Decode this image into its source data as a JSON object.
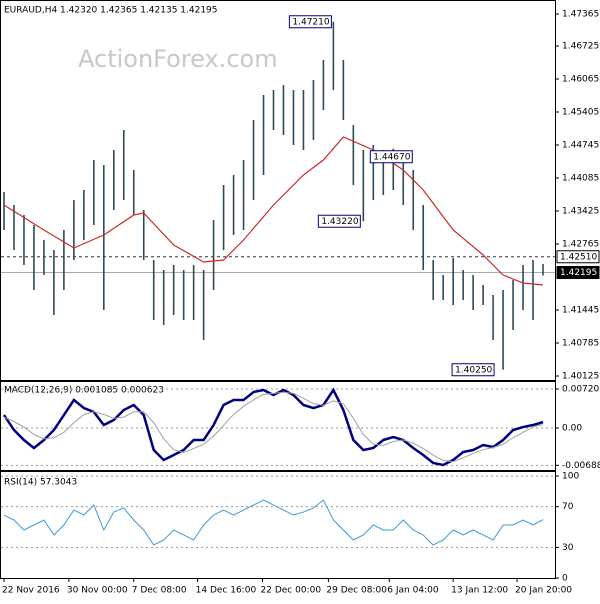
{
  "chart_data": [
    {
      "type": "ohlc",
      "title": "EURAUD,H4  1.42320 1.42365 1.42135 1.42195",
      "watermark": "ActionForex.com",
      "color": "#2e4a58",
      "highs": [
        1.43805,
        1.43545,
        1.43345,
        1.43145,
        1.42845,
        1.42645,
        1.43045,
        1.43645,
        1.43845,
        1.44445,
        1.44345,
        1.44645,
        1.45045,
        1.44245,
        1.43445,
        1.42445,
        1.42245,
        1.42345,
        1.42245,
        1.42345,
        1.42245,
        1.43245,
        1.43945,
        1.44145,
        1.44445,
        1.45245,
        1.45745,
        1.45845,
        1.45945,
        1.45845,
        1.45845,
        1.46045,
        1.46445,
        1.4721,
        1.46445,
        1.45145,
        1.44645,
        1.44745,
        1.44645,
        1.4467,
        1.44445,
        1.44245,
        1.43545,
        1.42445,
        1.42145,
        1.42485,
        1.42245,
        1.42145,
        1.41945,
        1.41745,
        1.41845,
        1.42045,
        1.42345,
        1.42445,
        1.42365
      ],
      "lows": [
        1.43045,
        1.42645,
        1.42345,
        1.41845,
        1.42145,
        1.41345,
        1.41845,
        1.42445,
        1.42845,
        1.43145,
        1.41445,
        1.43445,
        1.43645,
        1.43345,
        1.42445,
        1.41245,
        1.41145,
        1.41345,
        1.41245,
        1.41245,
        1.40845,
        1.41845,
        1.42645,
        1.42945,
        1.43045,
        1.43645,
        1.44145,
        1.45045,
        1.44945,
        1.44745,
        1.44645,
        1.44845,
        1.45445,
        1.45845,
        1.45245,
        1.43945,
        1.4322,
        1.43645,
        1.43745,
        1.43845,
        1.43545,
        1.43045,
        1.42245,
        1.41645,
        1.41645,
        1.41545,
        1.41645,
        1.41445,
        1.41545,
        1.40845,
        1.4025,
        1.41045,
        1.41445,
        1.41245,
        1.42135
      ],
      "ma": {
        "color": "#cc2a2a",
        "x": [
          0,
          4,
          7,
          10,
          13,
          14,
          17,
          20,
          22,
          24,
          27,
          30,
          32,
          34,
          37,
          40,
          42,
          45,
          48,
          50,
          52,
          54
        ],
        "values": [
          1.43545,
          1.43045,
          1.42685,
          1.42945,
          1.43345,
          1.43385,
          1.42745,
          1.42405,
          1.42445,
          1.42845,
          1.43545,
          1.44145,
          1.44445,
          1.44905,
          1.44645,
          1.44245,
          1.43845,
          1.43045,
          1.42545,
          1.42145,
          1.41985,
          1.41945
        ]
      },
      "annotations": [
        {
          "bar": 33,
          "at": "highs",
          "label": "1.47210"
        },
        {
          "bar": 39,
          "at": "highs",
          "label": "1.44670"
        },
        {
          "bar": 36,
          "at": "lows",
          "label": "1.43220"
        },
        {
          "bar": 50,
          "at": "lows",
          "label": "1.40250"
        }
      ],
      "levels": [
        {
          "value": 1.4251,
          "label": "1.42510",
          "style": "dashed"
        },
        {
          "value": 1.42195,
          "label": "1.42195",
          "style": "solid"
        }
      ],
      "ylim": [
        1.40045,
        1.47645
      ],
      "yticks": [
        1.47365,
        1.46725,
        1.46065,
        1.45405,
        1.44745,
        1.44085,
        1.43425,
        1.42765,
        1.41445,
        1.40785,
        1.40125
      ],
      "xticks": [
        {
          "value": 0,
          "label": "22 Nov 2016"
        },
        {
          "value": 6.5,
          "label": "30 Nov 00:00"
        },
        {
          "value": 13,
          "label": "7 Dec 08:00"
        },
        {
          "value": 19.4,
          "label": "14 Dec 16:00"
        },
        {
          "value": 25.9,
          "label": "22 Dec 00:00"
        },
        {
          "value": 32.5,
          "label": "29 Dec 08:00"
        },
        {
          "value": 38.6,
          "label": "6 Jan 04:00"
        },
        {
          "value": 45,
          "label": "13 Jan 12:00"
        },
        {
          "value": 51.4,
          "label": "20 Jan 20:00"
        }
      ]
    },
    {
      "type": "line",
      "title": "MACD(12,26,9) 0.001085 0.000623",
      "ylim": [
        -0.007753,
        0.008678
      ],
      "yticks": [
        0.007201,
        {
          "value": 0,
          "label": "0.00"
        },
        -0.006888
      ],
      "series": [
        {
          "color": "#000080",
          "width": 2.5,
          "values": [
            0.0024,
            -0.00037,
            -0.00222,
            -0.00369,
            -0.00222,
            -0.00037,
            0.0024,
            0.00517,
            0.00369,
            0.00295,
            0.00055,
            0.00148,
            0.00332,
            0.00425,
            0.0024,
            -0.00406,
            -0.00591,
            -0.00498,
            -0.00406,
            -0.00222,
            -0.00222,
            0.00055,
            0.00425,
            0.00517,
            0.00517,
            0.00665,
            0.00701,
            0.00609,
            0.00701,
            0.00609,
            0.00425,
            0.00369,
            0.00425,
            0.00701,
            0.00332,
            -0.00222,
            -0.00406,
            -0.00369,
            -0.00222,
            -0.00166,
            -0.00222,
            -0.00369,
            -0.00498,
            -0.00646,
            -0.00683,
            -0.00591,
            -0.00443,
            -0.00406,
            -0.00314,
            -0.00351,
            -0.00222,
            -0.00037,
            0.00018,
            0.00055,
            0.001085
          ]
        },
        {
          "color": "#a0a0a0",
          "width": 1,
          "values": [
            0.002,
            0.0012,
            0.0002,
            -0.0012,
            -0.002,
            -0.0018,
            -0.0008,
            0.001,
            0.0025,
            0.003,
            0.0025,
            0.0018,
            0.002,
            0.003,
            0.003,
            0.001,
            -0.002,
            -0.004,
            -0.0045,
            -0.0038,
            -0.003,
            -0.0015,
            0.0005,
            0.0025,
            0.004,
            0.0052,
            0.0062,
            0.0064,
            0.0066,
            0.0064,
            0.0055,
            0.0045,
            0.0042,
            0.005,
            0.0045,
            0.0018,
            -0.0012,
            -0.003,
            -0.0032,
            -0.0025,
            -0.0022,
            -0.0028,
            -0.0038,
            -0.005,
            -0.006,
            -0.0062,
            -0.0055,
            -0.0047,
            -0.004,
            -0.0036,
            -0.003,
            -0.0018,
            -0.0008,
            0.0002,
            0.000623
          ]
        }
      ]
    },
    {
      "type": "line",
      "title": "RSI(14) 57.3043",
      "ylim": [
        0,
        104
      ],
      "yticks": [
        100,
        70,
        30,
        0
      ],
      "series": [
        {
          "color": "#3d9ad8",
          "width": 1,
          "values": [
            61.8,
            56.9,
            47.1,
            52,
            56.9,
            42.2,
            52,
            66.7,
            61.8,
            71.6,
            47.1,
            64.7,
            68.6,
            56.9,
            47.1,
            32.4,
            37.3,
            47.1,
            42.2,
            37.3,
            52,
            61.8,
            66.7,
            61.8,
            66.7,
            71.6,
            76.5,
            71.6,
            66.7,
            61.8,
            64.7,
            68.6,
            76.5,
            56.9,
            47.1,
            37.3,
            42.2,
            52,
            47.1,
            47.1,
            56.9,
            47.1,
            42.2,
            32.4,
            37.3,
            47.1,
            42.2,
            47.1,
            42.2,
            37.3,
            52,
            52,
            56.9,
            52,
            57.3043
          ]
        }
      ]
    }
  ]
}
